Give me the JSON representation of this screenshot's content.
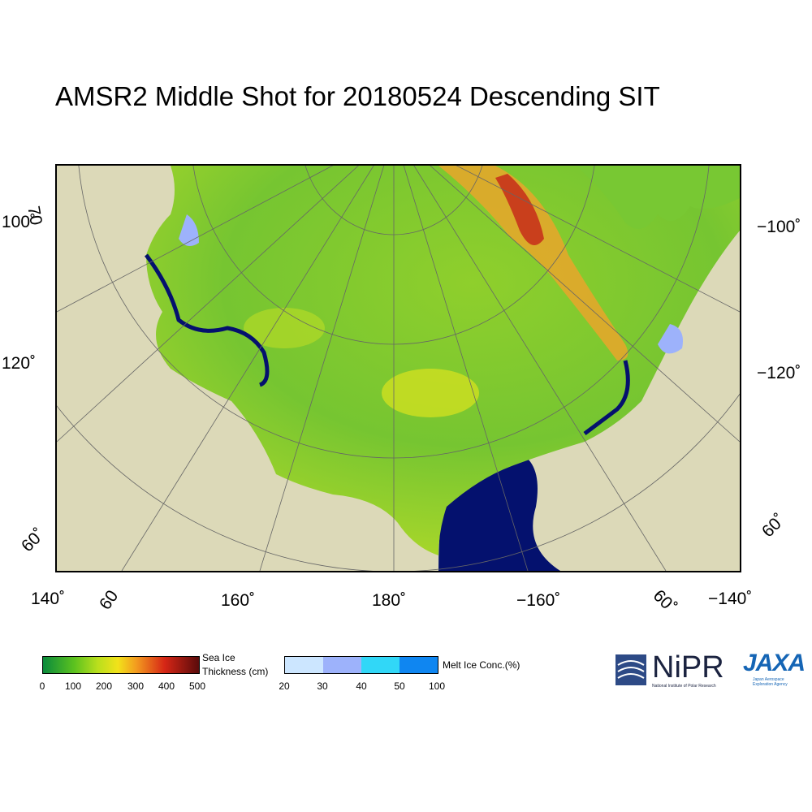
{
  "title": "AMSR2 Middle Shot for 20180524 Descending SIT",
  "axis_labels": {
    "left": [
      "70",
      "100˚",
      "120˚",
      "60˚"
    ],
    "right": [
      "−100˚",
      "−120˚",
      "60˚"
    ],
    "bottom": [
      "140˚",
      "60",
      "160˚",
      "180˚",
      "−160˚",
      "60˚",
      "−140˚"
    ]
  },
  "thickness_legend": {
    "label_line1": "Sea Ice",
    "label_line2": "Thickness (cm)",
    "ticks": [
      "0",
      "100",
      "200",
      "300",
      "400",
      "500"
    ],
    "colors": [
      "#0a8a3c",
      "#5cc21f",
      "#b9df1d",
      "#f2e21a",
      "#f39a1f",
      "#d62616",
      "#5a0b0b"
    ]
  },
  "melt_legend": {
    "label": "Melt Ice Conc.(%)",
    "ticks": [
      "20",
      "30",
      "40",
      "50",
      "100"
    ],
    "colors": [
      "#cce6ff",
      "#9db2fb",
      "#31d7f7",
      "#0f86f1"
    ]
  },
  "logos": {
    "nipr_text": "NiPR",
    "nipr_sub": "National Institute of Polar Research",
    "jaxa_text": "JAXA",
    "jaxa_sub": "Japan Aerospace Exploration Agency"
  },
  "map_colors": {
    "land": "#dcd9b8",
    "ocean": "#04116e",
    "ice_main": "#78c833"
  }
}
